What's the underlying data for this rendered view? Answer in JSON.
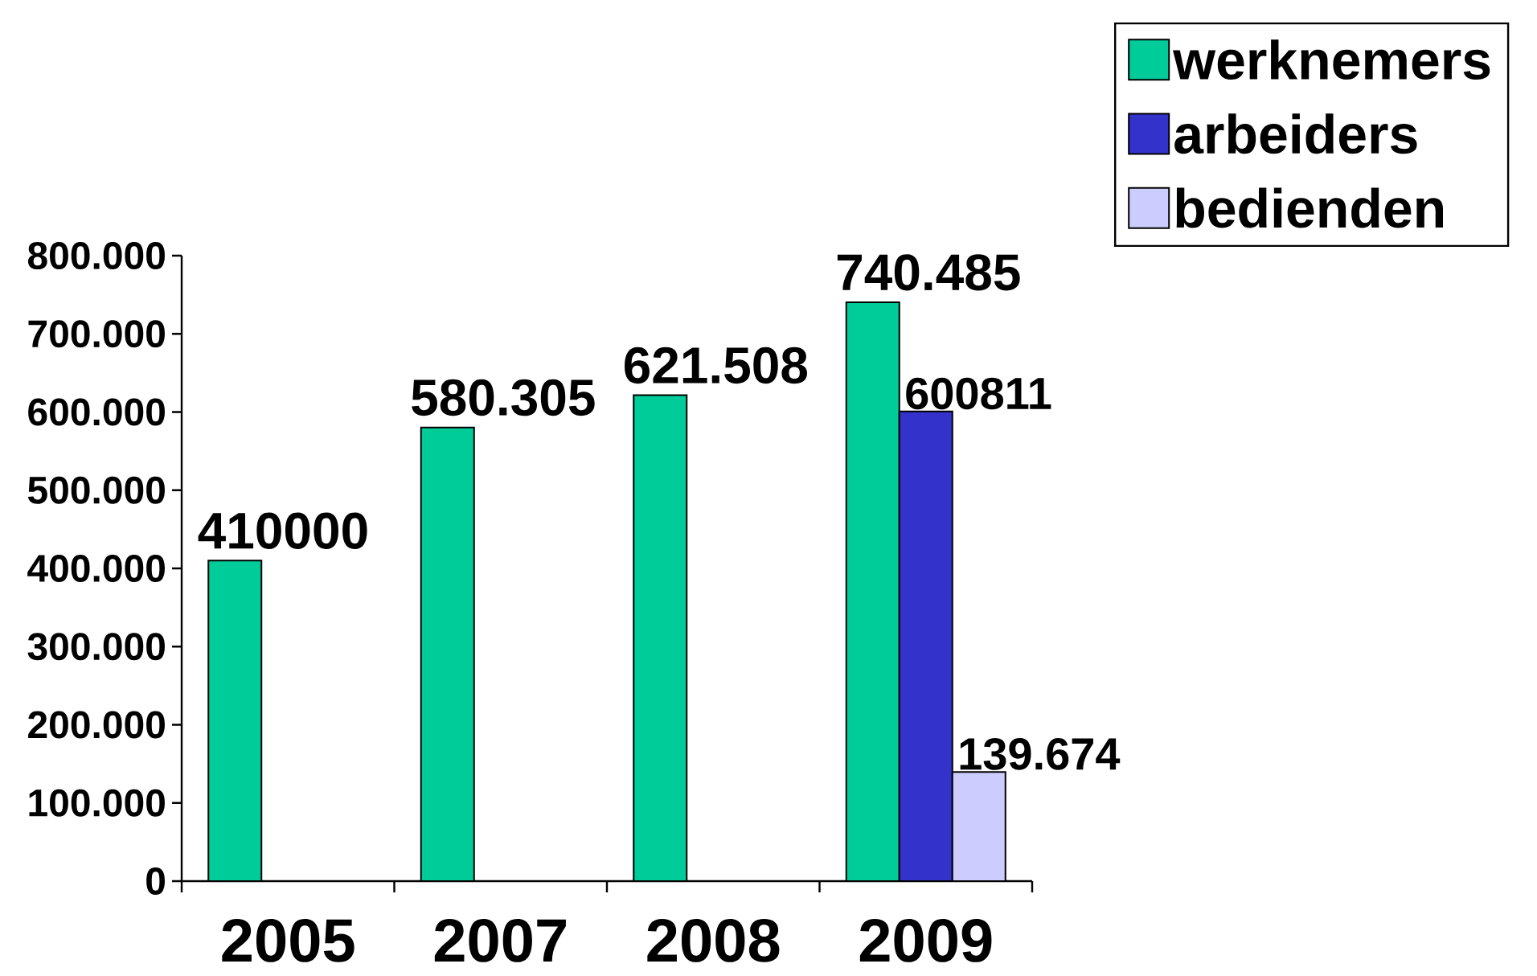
{
  "chart_data": {
    "type": "bar",
    "categories": [
      "2005",
      "2007",
      "2008",
      "2009"
    ],
    "series": [
      {
        "name": "werknemers",
        "color": "#00cc99",
        "values": [
          410000,
          580305,
          621508,
          740485
        ],
        "value_labels": [
          "410000",
          "580.305",
          "621.508",
          "740.485"
        ]
      },
      {
        "name": "arbeiders",
        "color": "#3333cc",
        "values": [
          null,
          null,
          null,
          600811
        ],
        "value_labels": [
          null,
          null,
          null,
          "600811"
        ]
      },
      {
        "name": "bedienden",
        "color": "#ccccff",
        "values": [
          null,
          null,
          null,
          139674
        ],
        "value_labels": [
          null,
          null,
          null,
          "139.674"
        ]
      }
    ],
    "ylim": [
      0,
      800000
    ],
    "yticks": [
      0,
      {
        "value": 100000,
        "label": "100.000"
      },
      {
        "value": 200000,
        "label": "200.000"
      },
      {
        "value": 300000,
        "label": "300.000"
      },
      {
        "value": 400000,
        "label": "400.000"
      },
      {
        "value": 500000,
        "label": "500.000"
      },
      {
        "value": 600000,
        "label": "600.000"
      },
      {
        "value": 700000,
        "label": "700.000"
      },
      {
        "value": 800000,
        "label": "800.000"
      }
    ],
    "legend": "top right"
  }
}
